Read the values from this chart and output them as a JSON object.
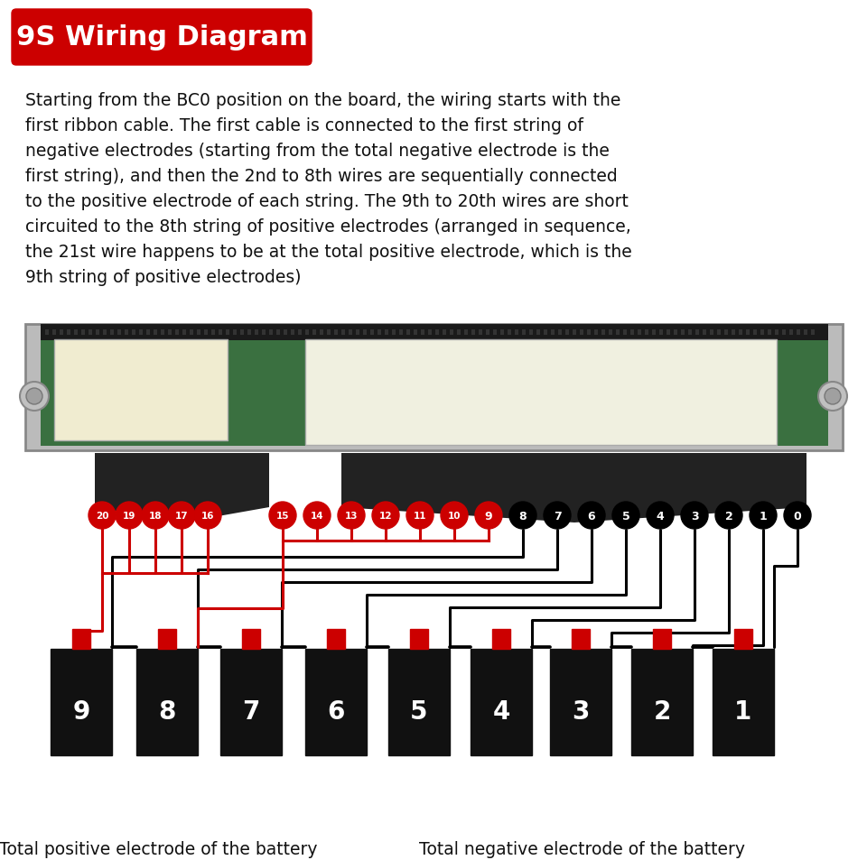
{
  "title": "9S Wiring Diagram",
  "title_bg": "#CC0000",
  "title_color": "#FFFFFF",
  "lines": [
    "Starting from the BC0 position on the board, the wiring starts with the",
    "first ribbon cable. The first cable is connected to the first string of",
    "negative electrodes (starting from the total negative electrode is the",
    "first string), and then the 2nd to 8th wires are sequentially connected",
    "to the positive electrode of each string. The 9th to 20th wires are short",
    "circuited to the 8th string of positive electrodes (arranged in sequence,",
    "the 21st wire happens to be at the total positive electrode, which is the",
    "9th string of positive electrodes)"
  ],
  "wire_labels": [
    "20",
    "19",
    "18",
    "17",
    "16",
    "15",
    "14",
    "13",
    "12",
    "11",
    "10",
    "9",
    "8",
    "7",
    "6",
    "5",
    "4",
    "3",
    "2",
    "1",
    "0"
  ],
  "battery_labels": [
    "9",
    "8",
    "7",
    "6",
    "5",
    "4",
    "3",
    "2",
    "1"
  ],
  "bottom_left_text": "Total positive electrode of the battery",
  "bottom_right_text": "Total negative electrode of the battery",
  "bg_color": "#FFFFFF",
  "wire_color_red": "#CC0000",
  "wire_color_black": "#000000",
  "battery_color": "#111111",
  "terminal_color": "#CC0000",
  "left_group": [
    "20",
    "19",
    "18",
    "17",
    "16"
  ],
  "right_group": [
    "15",
    "14",
    "13",
    "12",
    "11",
    "10",
    "9",
    "8",
    "7",
    "6",
    "5",
    "4",
    "3",
    "2",
    "1",
    "0"
  ],
  "red_labels": [
    "20",
    "19",
    "18",
    "17",
    "16",
    "15",
    "14",
    "13",
    "12",
    "11",
    "10",
    "9"
  ]
}
